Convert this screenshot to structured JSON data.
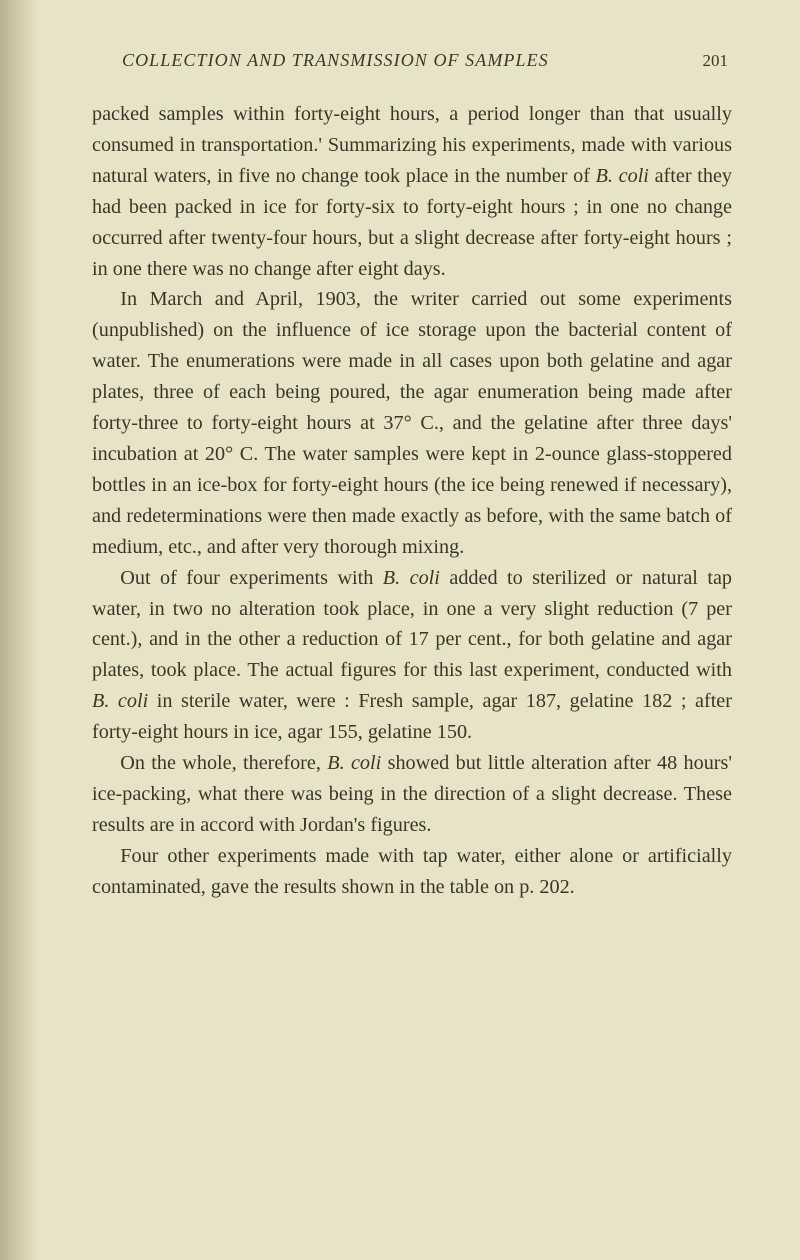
{
  "page": {
    "background_color": "#e8e3c7",
    "text_color": "#3b3528",
    "edge_shadow_start": "#b9b190",
    "edge_shadow_end": "#e8e3c700"
  },
  "header": {
    "running_head": "COLLECTION AND TRANSMISSION OF SAMPLES",
    "page_number": "201"
  },
  "paragraphs": {
    "p1a": "packed samples within forty-eight hours, a period longer than that usually consumed in transportation.' Summarizing his experiments, made with various natural waters, in five no change took place in the number of ",
    "p1b": " after they had been packed in ice for forty-six to forty-eight hours ; in one no change occurred after twenty-four hours, but a slight decrease after forty-eight hours ; in one there was no change after eight days.",
    "p2": "In March and April, 1903, the writer carried out some experiments (unpublished) on the influence of ice storage upon the bacterial content of water. The enumerations were made in all cases upon both gelatine and agar plates, three of each being poured, the agar enumeration being made after forty-three to forty-eight hours at 37° C., and the gelatine after three days' incubation at 20° C. The water samples were kept in 2-ounce glass-stoppered bottles in an ice-box for forty-eight hours (the ice being renewed if necessary), and redeterminations were then made exactly as before, with the same batch of medium, etc., and after very thorough mixing.",
    "p3a": "Out of four experiments with ",
    "p3b": " added to sterilized or natural tap water, in two no alteration took place, in one a very slight reduction (7 per cent.), and in the other a reduc­tion of 17 per cent., for both gelatine and agar plates, took place. The actual figures for this last experiment, con­ducted with ",
    "p3c": " in sterile water, were : Fresh sample, agar 187, gelatine 182 ; after forty-eight hours in ice, agar 155, gelatine 150.",
    "p4a": "On the whole, therefore, ",
    "p4b": " showed but little altera­tion after 48 hours' ice-packing, what there was being in the direction of a slight decrease. These results are in accord with Jordan's figures.",
    "p5": "Four other experiments made with tap water, either alone or artificially contaminated, gave the results shown in the table on p. 202.",
    "bcoli": "B. coli"
  }
}
